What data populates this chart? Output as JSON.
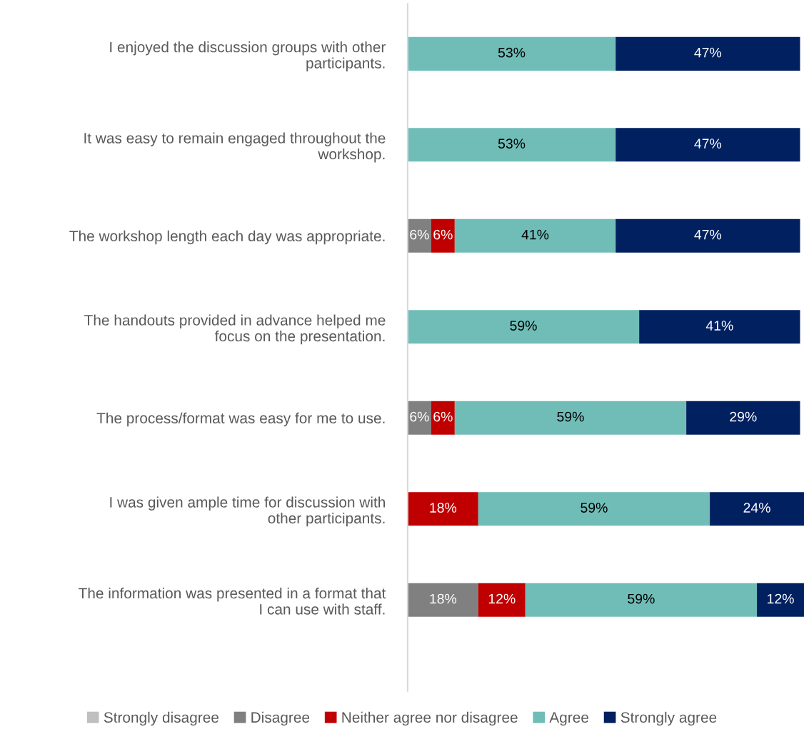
{
  "chart_data": {
    "type": "bar",
    "orientation": "horizontal",
    "stacked": true,
    "legend": "bottom",
    "categories": [
      "I enjoyed the discussion groups with other participants.",
      "It was easy to remain engaged throughout the workshop.",
      "The workshop length each day was appropriate.",
      "The handouts provided in advance helped me focus on the presentation.",
      "The process/format was easy for me to use.",
      "I was given ample time for discussion with other participants.",
      "The information was presented in a format that I can use with staff."
    ],
    "series": [
      {
        "name": "Strongly disagree",
        "color": "#bfbfbf",
        "values": [
          null,
          null,
          null,
          null,
          null,
          null,
          null
        ],
        "value_labels": [
          null,
          null,
          null,
          null,
          null,
          null,
          null
        ]
      },
      {
        "name": "Disagree",
        "color": "#808080",
        "values": [
          null,
          null,
          6,
          null,
          6,
          null,
          18
        ],
        "value_labels": [
          null,
          null,
          "6%",
          null,
          "6%",
          null,
          "18%"
        ]
      },
      {
        "name": "Neither agree nor disagree",
        "color": "#c00000",
        "values": [
          null,
          null,
          6,
          null,
          6,
          18,
          12
        ],
        "value_labels": [
          null,
          null,
          "6%",
          null,
          "6%",
          "18%",
          "12%"
        ]
      },
      {
        "name": "Agree",
        "color": "#70bdb8",
        "values": [
          53,
          53,
          41,
          59,
          59,
          59,
          59
        ],
        "value_labels": [
          "53%",
          "53%",
          "41%",
          "59%",
          "59%",
          "59%",
          "59%"
        ]
      },
      {
        "name": "Strongly agree",
        "color": "#002060",
        "values": [
          47,
          47,
          47,
          41,
          29,
          24,
          12
        ],
        "value_labels": [
          "47%",
          "47%",
          "47%",
          "41%",
          "29%",
          "24%",
          "12%"
        ]
      }
    ]
  }
}
